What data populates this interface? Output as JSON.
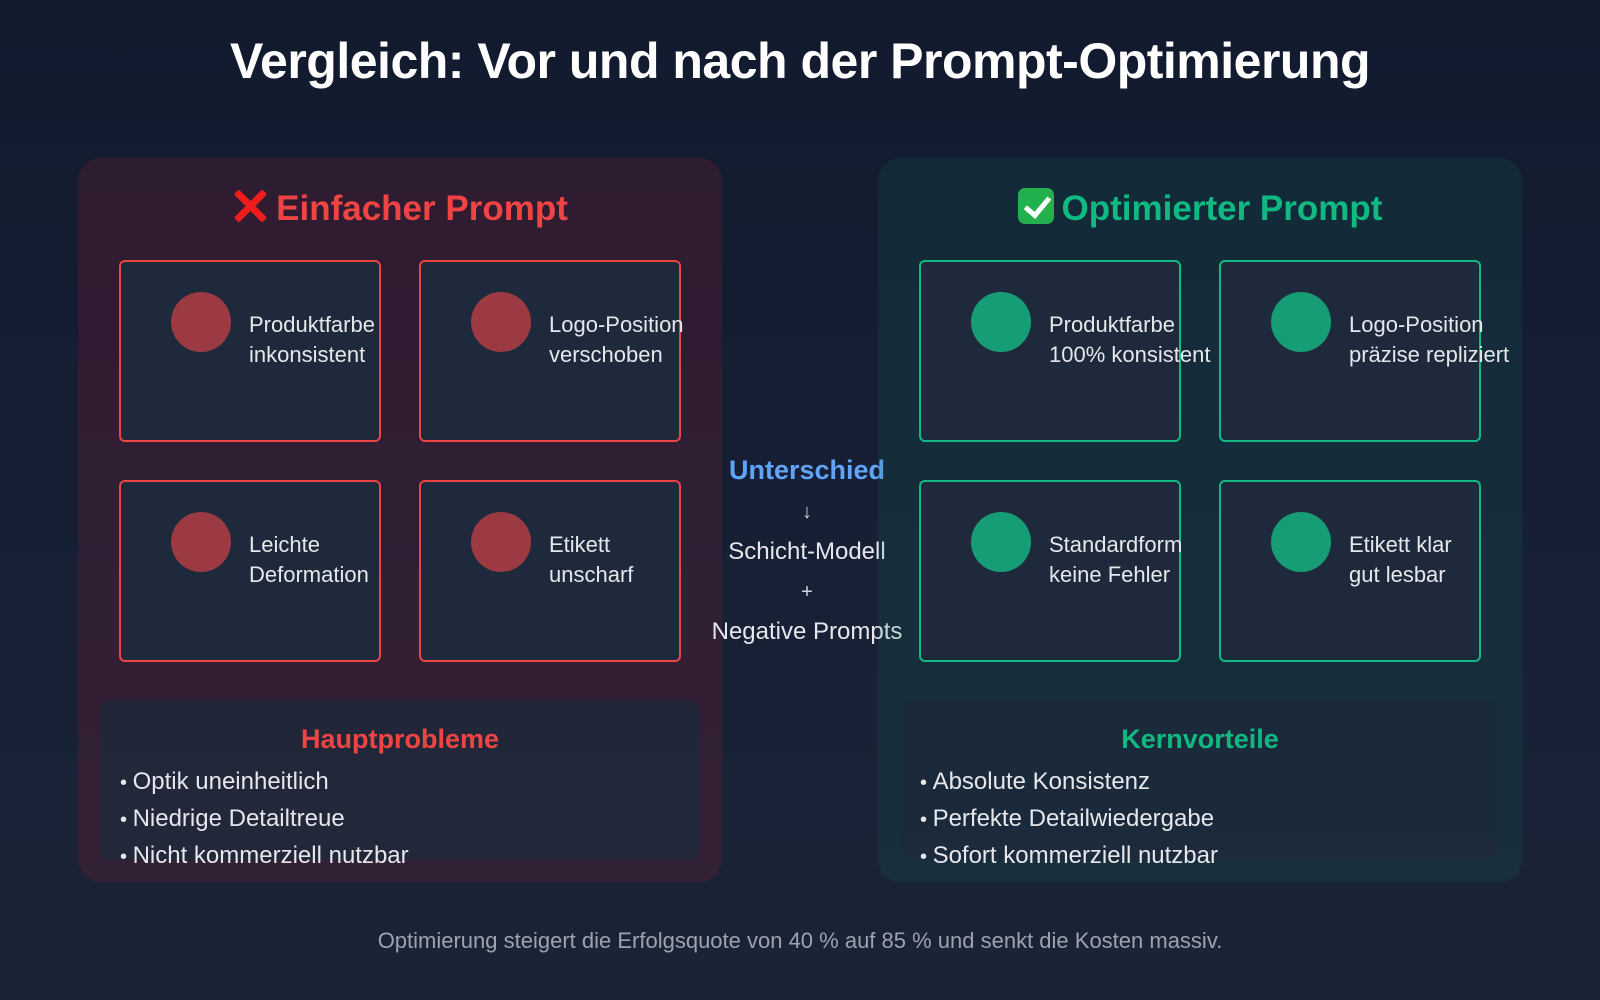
{
  "title": "Vergleich: Vor und nach der Prompt-Optimierung",
  "left_panel": {
    "title": "Einfacher Prompt",
    "icon": "cross-mark-icon",
    "accent": "#ef4444",
    "cards": [
      {
        "line1": "Produktfarbe",
        "line2": "inkonsistent"
      },
      {
        "line1": "Logo-Position",
        "line2": "verschoben"
      },
      {
        "line1": "Leichte",
        "line2": "Deformation"
      },
      {
        "line1": "Etikett",
        "line2": "unscharf"
      }
    ],
    "summary": {
      "title": "Hauptprobleme",
      "items": [
        "Optik uneinheitlich",
        "Niedrige Detailtreue",
        "Nicht kommerziell nutzbar"
      ]
    }
  },
  "middle": {
    "heading": "Unterschied",
    "arrow": "↓",
    "line1": "Schicht-Modell",
    "plus": "+",
    "line2": "Negative Prompts"
  },
  "right_panel": {
    "title": "Optimierter Prompt",
    "icon": "check-mark-icon",
    "accent": "#10b981",
    "cards": [
      {
        "line1": "Produktfarbe",
        "line2": "100% konsistent"
      },
      {
        "line1": "Logo-Position",
        "line2": "präzise repliziert"
      },
      {
        "line1": "Standardform",
        "line2": "keine Fehler"
      },
      {
        "line1": "Etikett klar",
        "line2": "gut lesbar"
      }
    ],
    "summary": {
      "title": "Kernvorteile",
      "items": [
        "Absolute Konsistenz",
        "Perfekte Detailwiedergabe",
        "Sofort kommerziell nutzbar"
      ]
    }
  },
  "footer": "Optimierung steigert die Erfolgsquote von 40 % auf 85 % und senkt die Kosten massiv."
}
